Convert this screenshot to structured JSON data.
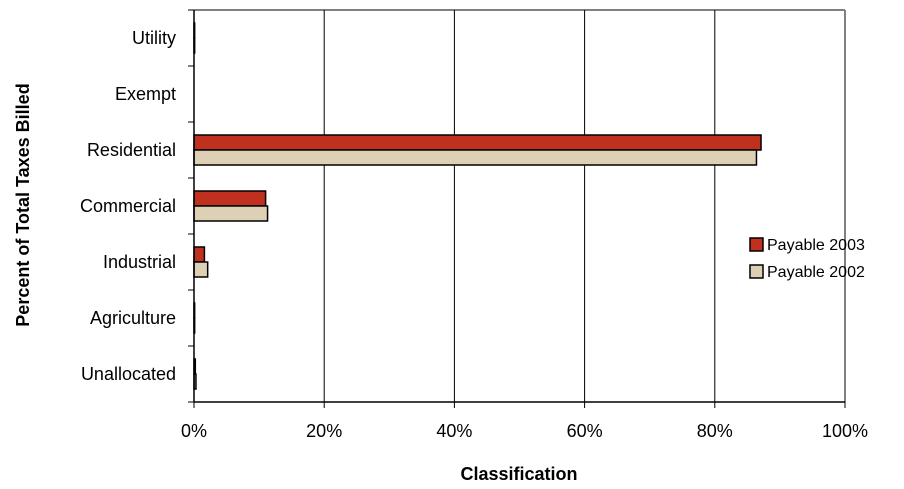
{
  "chart_data": {
    "type": "bar",
    "orientation": "horizontal",
    "title": "",
    "xlabel": "Classification",
    "ylabel": "Percent of Total Taxes Billed",
    "xlim": [
      0,
      100
    ],
    "x_ticks": [
      0,
      20,
      40,
      60,
      80,
      100
    ],
    "x_tick_labels": [
      "0%",
      "20%",
      "40%",
      "60%",
      "80%",
      "100%"
    ],
    "categories": [
      "Utility",
      "Exempt",
      "Residential",
      "Commercial",
      "Industrial",
      "Agriculture",
      "Unallocated"
    ],
    "series": [
      {
        "name": "Payable 2003",
        "color": "#C0301E",
        "values": [
          0.1,
          0.0,
          87.1,
          11.0,
          1.6,
          0.1,
          0.2
        ]
      },
      {
        "name": "Payable 2002",
        "color": "#DDD0B4",
        "values": [
          0.1,
          0.0,
          86.4,
          11.3,
          2.1,
          0.1,
          0.3
        ]
      }
    ],
    "grid": "vertical",
    "legend_position": "right"
  }
}
